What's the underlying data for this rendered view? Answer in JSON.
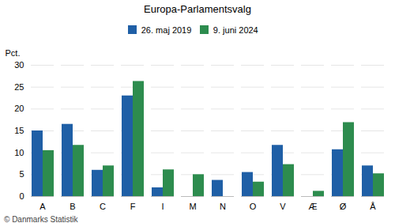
{
  "chart_data": {
    "type": "bar",
    "title": "Europa-Parlamentsvalg",
    "categories": [
      "A",
      "B",
      "C",
      "F",
      "I",
      "M",
      "N",
      "O",
      "V",
      "Æ",
      "Ø",
      "Å"
    ],
    "series": [
      {
        "name": "26. maj 2019",
        "color": "#1F5FA6",
        "values": [
          15.0,
          16.5,
          6.0,
          23.0,
          2.0,
          0.0,
          3.7,
          5.5,
          11.7,
          0.0,
          10.7,
          7.0
        ]
      },
      {
        "name": "9. juni 2024",
        "color": "#2D8C4E",
        "values": [
          10.5,
          11.7,
          7.0,
          26.3,
          6.1,
          5.0,
          0.0,
          3.3,
          7.3,
          1.2,
          16.9,
          5.2
        ]
      }
    ],
    "ylabel": "Pct.",
    "ylim": [
      0,
      30
    ],
    "yticks": [
      0,
      5,
      10,
      15,
      20,
      25,
      30
    ],
    "grid": true,
    "caption": "© Danmarks Statistik"
  }
}
